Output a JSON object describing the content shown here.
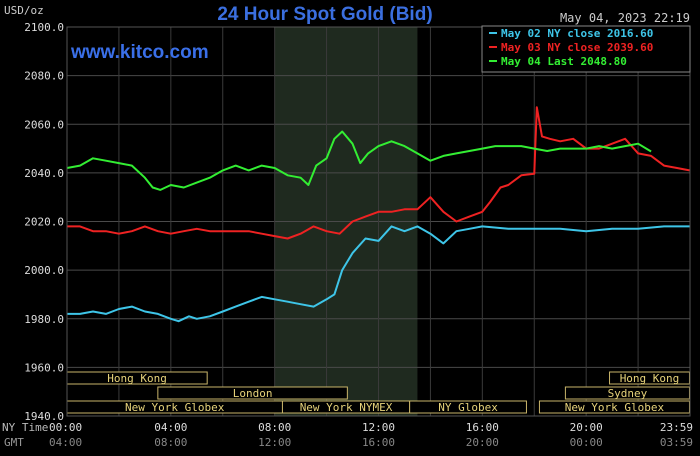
{
  "chart_data": {
    "type": "line",
    "title": "24 Hour Spot Gold (Bid)",
    "watermark": "www.kitco.com",
    "currency_label": "USD/oz",
    "timestamp": "May 04, 2023 22:19",
    "ylim": [
      1940,
      2100
    ],
    "yticks": [
      "2100.0",
      "2080.0",
      "2060.0",
      "2040.0",
      "2020.0",
      "2000.0",
      "1980.0",
      "1960.0",
      "1940.0"
    ],
    "x_row_labels": {
      "ny": "NY Time",
      "gmt": "GMT"
    },
    "xticks_ny": [
      "00:00",
      "04:00",
      "08:00",
      "12:00",
      "16:00",
      "20:00",
      "23:59"
    ],
    "xticks_gmt": [
      "04:00",
      "08:00",
      "12:00",
      "16:00",
      "20:00",
      "00:00",
      "03:59"
    ],
    "x_hours": [
      0,
      4,
      8,
      12,
      16,
      20,
      23.98
    ],
    "shaded_period": [
      8,
      13.5
    ],
    "sessions": [
      {
        "name": "Hong Kong",
        "row": 0,
        "start": 0,
        "end": 5.4
      },
      {
        "name": "London",
        "row": 1,
        "start": 3.5,
        "end": 10.8
      },
      {
        "name": "New York Globex",
        "row": 2,
        "start": 0,
        "end": 8.3
      },
      {
        "name": "New York NYMEX",
        "row": 2,
        "start": 8.3,
        "end": 13.2
      },
      {
        "name": "NY Globex",
        "row": 2,
        "start": 13.2,
        "end": 17.7
      },
      {
        "name": "Hong Kong",
        "row": 0,
        "start": 20.9,
        "end": 23.98
      },
      {
        "name": "Sydney",
        "row": 1,
        "start": 19.2,
        "end": 23.98
      },
      {
        "name": "New York Globex",
        "row": 2,
        "start": 18.2,
        "end": 23.98
      }
    ],
    "legend_position": "top-right",
    "series": [
      {
        "name": "May 02 NY close 2016.60",
        "color": "#3ec5e8",
        "points": [
          [
            0,
            1982
          ],
          [
            0.5,
            1982
          ],
          [
            1,
            1983
          ],
          [
            1.5,
            1982
          ],
          [
            2,
            1984
          ],
          [
            2.5,
            1985
          ],
          [
            3,
            1983
          ],
          [
            3.5,
            1982
          ],
          [
            4,
            1980
          ],
          [
            4.3,
            1979
          ],
          [
            4.7,
            1981
          ],
          [
            5,
            1980
          ],
          [
            5.5,
            1981
          ],
          [
            6,
            1983
          ],
          [
            6.5,
            1985
          ],
          [
            7,
            1987
          ],
          [
            7.5,
            1989
          ],
          [
            8,
            1988
          ],
          [
            8.5,
            1987
          ],
          [
            9,
            1986
          ],
          [
            9.5,
            1985
          ],
          [
            10,
            1988
          ],
          [
            10.3,
            1990
          ],
          [
            10.6,
            2000
          ],
          [
            11,
            2007
          ],
          [
            11.5,
            2013
          ],
          [
            12,
            2012
          ],
          [
            12.5,
            2018
          ],
          [
            13,
            2016
          ],
          [
            13.5,
            2018
          ],
          [
            14,
            2015
          ],
          [
            14.5,
            2011
          ],
          [
            15,
            2016
          ],
          [
            15.5,
            2017
          ],
          [
            16,
            2018
          ],
          [
            17,
            2017
          ],
          [
            18,
            2017
          ],
          [
            19,
            2017
          ],
          [
            20,
            2016
          ],
          [
            21,
            2017
          ],
          [
            22,
            2017
          ],
          [
            23,
            2018
          ],
          [
            23.98,
            2018
          ]
        ]
      },
      {
        "name": "May 03 NY close 2039.60",
        "color": "#ee2222",
        "points": [
          [
            0,
            2018
          ],
          [
            0.5,
            2018
          ],
          [
            1,
            2016
          ],
          [
            1.5,
            2016
          ],
          [
            2,
            2015
          ],
          [
            2.5,
            2016
          ],
          [
            3,
            2018
          ],
          [
            3.5,
            2016
          ],
          [
            4,
            2015
          ],
          [
            4.5,
            2016
          ],
          [
            5,
            2017
          ],
          [
            5.5,
            2016
          ],
          [
            6,
            2016
          ],
          [
            6.5,
            2016
          ],
          [
            7,
            2016
          ],
          [
            7.5,
            2015
          ],
          [
            8,
            2014
          ],
          [
            8.5,
            2013
          ],
          [
            9,
            2015
          ],
          [
            9.5,
            2018
          ],
          [
            10,
            2016
          ],
          [
            10.5,
            2015
          ],
          [
            11,
            2020
          ],
          [
            11.5,
            2022
          ],
          [
            12,
            2024
          ],
          [
            12.5,
            2024
          ],
          [
            13,
            2025
          ],
          [
            13.5,
            2025
          ],
          [
            14,
            2030
          ],
          [
            14.5,
            2024
          ],
          [
            15,
            2020
          ],
          [
            15.5,
            2022
          ],
          [
            16,
            2024
          ],
          [
            16.3,
            2028
          ],
          [
            16.7,
            2034
          ],
          [
            17,
            2035
          ],
          [
            17.5,
            2039
          ],
          [
            18,
            2039.6
          ],
          [
            18,
            2040
          ],
          [
            18.1,
            2067
          ],
          [
            18.3,
            2055
          ],
          [
            18.6,
            2054
          ],
          [
            19,
            2053
          ],
          [
            19.5,
            2054
          ],
          [
            20,
            2050
          ],
          [
            20.5,
            2050
          ],
          [
            21,
            2052
          ],
          [
            21.5,
            2054
          ],
          [
            22,
            2048
          ],
          [
            22.5,
            2047
          ],
          [
            23,
            2043
          ],
          [
            23.5,
            2042
          ],
          [
            23.98,
            2041
          ]
        ]
      },
      {
        "name": "May 04 Last 2048.80",
        "color": "#33ee33",
        "points": [
          [
            0,
            2042
          ],
          [
            0.5,
            2043
          ],
          [
            1,
            2046
          ],
          [
            1.5,
            2045
          ],
          [
            2,
            2044
          ],
          [
            2.5,
            2043
          ],
          [
            3,
            2038
          ],
          [
            3.3,
            2034
          ],
          [
            3.6,
            2033
          ],
          [
            4,
            2035
          ],
          [
            4.5,
            2034
          ],
          [
            5,
            2036
          ],
          [
            5.5,
            2038
          ],
          [
            6,
            2041
          ],
          [
            6.5,
            2043
          ],
          [
            7,
            2041
          ],
          [
            7.5,
            2043
          ],
          [
            8,
            2042
          ],
          [
            8.5,
            2039
          ],
          [
            9,
            2038
          ],
          [
            9.3,
            2035
          ],
          [
            9.6,
            2043
          ],
          [
            10,
            2046
          ],
          [
            10.3,
            2054
          ],
          [
            10.6,
            2057
          ],
          [
            11,
            2052
          ],
          [
            11.3,
            2044
          ],
          [
            11.6,
            2048
          ],
          [
            12,
            2051
          ],
          [
            12.5,
            2053
          ],
          [
            13,
            2051
          ],
          [
            13.5,
            2048
          ],
          [
            14,
            2045
          ],
          [
            14.5,
            2047
          ],
          [
            15,
            2048
          ],
          [
            15.5,
            2049
          ],
          [
            16,
            2050
          ],
          [
            16.5,
            2051
          ],
          [
            17,
            2051
          ],
          [
            17.5,
            2051
          ],
          [
            18,
            2050
          ],
          [
            18.5,
            2049
          ],
          [
            19,
            2050
          ],
          [
            19.5,
            2050
          ],
          [
            20,
            2050
          ],
          [
            20.5,
            2051
          ],
          [
            21,
            2050
          ],
          [
            21.5,
            2051
          ],
          [
            22,
            2052
          ],
          [
            22.5,
            2048.8
          ]
        ]
      }
    ]
  }
}
